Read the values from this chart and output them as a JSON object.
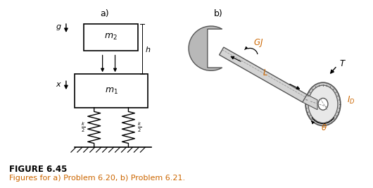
{
  "title_a": "a)",
  "title_b": "b)",
  "fig_label": "FIGURE 6.45",
  "fig_caption": "Figures for a) Problem 6.20, b) Problem 6.21.",
  "background": "#ffffff",
  "text_color": "#000000",
  "label_color": "#cc6600",
  "gray_fill": "#b8b8b8",
  "gray_edge": "#555555",
  "shaft_fill": "#d4d4d4",
  "disk_fill": "#e0e0e0"
}
